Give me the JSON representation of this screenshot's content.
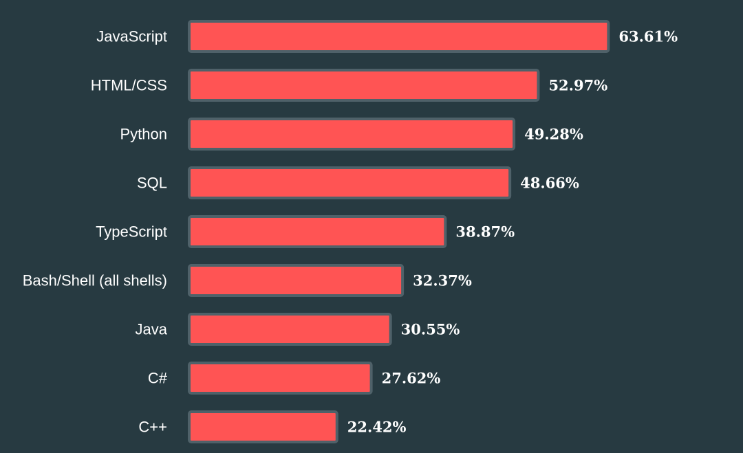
{
  "chart_data": {
    "type": "bar",
    "orientation": "horizontal",
    "categories": [
      "JavaScript",
      "HTML/CSS",
      "Python",
      "SQL",
      "TypeScript",
      "Bash/Shell (all shells)",
      "Java",
      "C#",
      "C++"
    ],
    "values": [
      63.61,
      52.97,
      49.28,
      48.66,
      38.87,
      32.37,
      30.55,
      27.62,
      22.42
    ],
    "value_labels": [
      "63.61%",
      "52.97%",
      "49.28%",
      "48.66%",
      "38.87%",
      "32.37%",
      "30.55%",
      "27.62%",
      "22.42%"
    ],
    "title": "",
    "xlabel": "",
    "ylabel": "",
    "grid": false,
    "legend": "none",
    "colors": {
      "background": "#273a41",
      "bar_fill": "#ff5454",
      "bar_border": "#4f6169",
      "text": "#ffffff"
    }
  }
}
